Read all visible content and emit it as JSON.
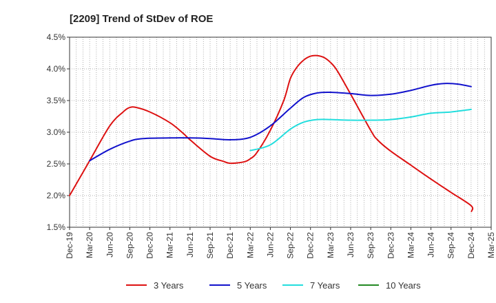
{
  "chart_data": {
    "type": "line",
    "title": "[2209]  Trend of StDev of ROE",
    "xlabel": "",
    "ylabel": "",
    "x_ticks": [
      "Dec-19",
      "Mar-20",
      "Jun-20",
      "Sep-20",
      "Dec-20",
      "Mar-21",
      "Jun-21",
      "Sep-21",
      "Dec-21",
      "Mar-22",
      "Jun-22",
      "Sep-22",
      "Dec-22",
      "Mar-23",
      "Jun-23",
      "Sep-23",
      "Dec-23",
      "Mar-24",
      "Jun-24",
      "Sep-24",
      "Dec-24",
      "Mar-25"
    ],
    "y_ticks": [
      "1.5%",
      "2.0%",
      "2.5%",
      "3.0%",
      "3.5%",
      "4.0%",
      "4.5%"
    ],
    "ylim": [
      1.5,
      4.5
    ],
    "grid": true,
    "legend_position": "bottom",
    "series": [
      {
        "name": "3 Years",
        "color": "#dd1111",
        "values": [
          [
            "Dec-19",
            2.0
          ],
          [
            "Mar-20",
            2.55
          ],
          [
            "Jun-20",
            3.1
          ],
          [
            "Aug-20",
            3.32
          ],
          [
            "Sep-20",
            3.39
          ],
          [
            "Oct-20",
            3.39
          ],
          [
            "Dec-20",
            3.32
          ],
          [
            "Mar-21",
            3.15
          ],
          [
            "May-21",
            2.98
          ],
          [
            "Jun-21",
            2.88
          ],
          [
            "Sep-21",
            2.62
          ],
          [
            "Nov-21",
            2.54
          ],
          [
            "Dec-21",
            2.51
          ],
          [
            "Feb-22",
            2.53
          ],
          [
            "Mar-22",
            2.58
          ],
          [
            "Apr-22",
            2.68
          ],
          [
            "Jun-22",
            3.03
          ],
          [
            "Aug-22",
            3.5
          ],
          [
            "Sep-22",
            3.85
          ],
          [
            "Oct-22",
            4.03
          ],
          [
            "Nov-22",
            4.14
          ],
          [
            "Dec-22",
            4.2
          ],
          [
            "Jan-23",
            4.21
          ],
          [
            "Feb-23",
            4.18
          ],
          [
            "Mar-23",
            4.1
          ],
          [
            "Apr-23",
            3.97
          ],
          [
            "Jun-23",
            3.6
          ],
          [
            "Sep-23",
            3.03
          ],
          [
            "Oct-23",
            2.88
          ],
          [
            "Dec-23",
            2.7
          ],
          [
            "Mar-24",
            2.48
          ],
          [
            "Jun-24",
            2.26
          ],
          [
            "Sep-24",
            2.05
          ],
          [
            "Dec-24",
            1.84
          ],
          [
            "Dec-24",
            1.75
          ]
        ]
      },
      {
        "name": "5 Years",
        "color": "#1111cc",
        "values": [
          [
            "Mar-20",
            2.55
          ],
          [
            "Jun-20",
            2.73
          ],
          [
            "Sep-20",
            2.86
          ],
          [
            "Nov-20",
            2.9
          ],
          [
            "Mar-21",
            2.91
          ],
          [
            "Jun-21",
            2.91
          ],
          [
            "Sep-21",
            2.9
          ],
          [
            "Dec-21",
            2.88
          ],
          [
            "Mar-22",
            2.92
          ],
          [
            "Jun-22",
            3.1
          ],
          [
            "Sep-22",
            3.38
          ],
          [
            "Nov-22",
            3.55
          ],
          [
            "Jan-23",
            3.62
          ],
          [
            "Mar-23",
            3.63
          ],
          [
            "Jun-23",
            3.61
          ],
          [
            "Sep-23",
            3.58
          ],
          [
            "Dec-23",
            3.6
          ],
          [
            "Mar-24",
            3.66
          ],
          [
            "Jun-24",
            3.74
          ],
          [
            "Aug-24",
            3.77
          ],
          [
            "Oct-24",
            3.76
          ],
          [
            "Dec-24",
            3.72
          ]
        ]
      },
      {
        "name": "7 Years",
        "color": "#22dddd",
        "values": [
          [
            "Mar-22",
            2.71
          ],
          [
            "Jun-22",
            2.8
          ],
          [
            "Sep-22",
            3.05
          ],
          [
            "Nov-22",
            3.16
          ],
          [
            "Jan-23",
            3.2
          ],
          [
            "Mar-23",
            3.2
          ],
          [
            "Jun-23",
            3.19
          ],
          [
            "Sep-23",
            3.19
          ],
          [
            "Dec-23",
            3.2
          ],
          [
            "Mar-24",
            3.24
          ],
          [
            "Jun-24",
            3.3
          ],
          [
            "Sep-24",
            3.32
          ],
          [
            "Dec-24",
            3.36
          ]
        ]
      },
      {
        "name": "10 Years",
        "color": "#228822",
        "values": []
      }
    ]
  }
}
